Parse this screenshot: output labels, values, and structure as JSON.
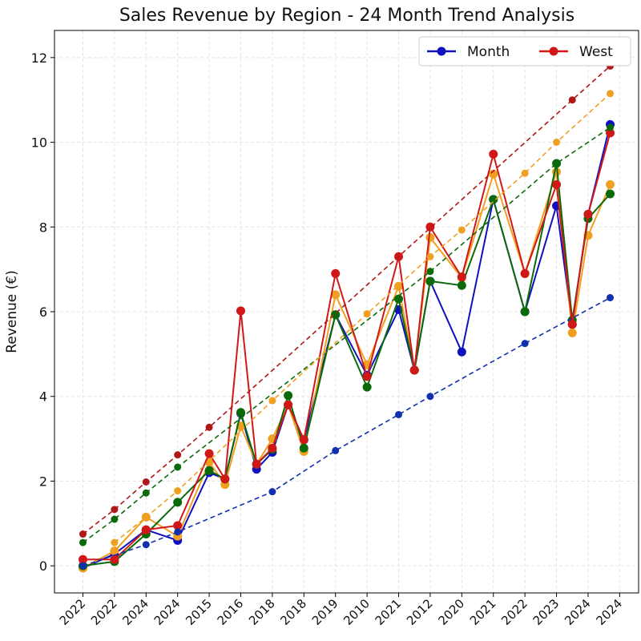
{
  "chart_data": {
    "type": "line",
    "title": "Sales Revenue by Region - 24 Month Trend Analysis",
    "y_label": "Revenue (€)",
    "xlim": [
      -0.9,
      17.6
    ],
    "xticks": [
      {
        "value": 0,
        "label": "2022"
      },
      {
        "value": 1,
        "label": "2022"
      },
      {
        "value": 2,
        "label": "2024"
      },
      {
        "value": 3,
        "label": "2024"
      },
      {
        "value": 4,
        "label": "2015"
      },
      {
        "value": 5,
        "label": "2016"
      },
      {
        "value": 6,
        "label": "2018"
      },
      {
        "value": 7,
        "label": "2018"
      },
      {
        "value": 8,
        "label": "2019"
      },
      {
        "value": 9,
        "label": "2010"
      },
      {
        "value": 10,
        "label": "2021"
      },
      {
        "value": 11,
        "label": "2012"
      },
      {
        "value": 12,
        "label": "2020"
      },
      {
        "value": 13,
        "label": "2021"
      },
      {
        "value": 14,
        "label": "2022"
      },
      {
        "value": 15,
        "label": "2023"
      },
      {
        "value": 16,
        "label": "2024"
      },
      {
        "value": 17,
        "label": "2024"
      }
    ],
    "ylim": [
      -0.64,
      12.64
    ],
    "yticks": [
      0,
      2,
      4,
      6,
      8,
      10,
      12
    ],
    "grid": true,
    "legend_position": "upper right",
    "series": [
      {
        "name": "Month",
        "color": "#1010c0",
        "style": "solid",
        "x": [
          0,
          1,
          2,
          3,
          4,
          4.5,
          5,
          5.5,
          6,
          6.5,
          7,
          8,
          9,
          10,
          10.5,
          11,
          12,
          13,
          14,
          15,
          15.5,
          16,
          16.7
        ],
        "values": [
          -0.05,
          0.28,
          0.85,
          0.6,
          2.2,
          2.05,
          3.6,
          2.28,
          2.68,
          3.8,
          2.97,
          5.93,
          4.5,
          6.05,
          4.62,
          6.72,
          5.05,
          8.65,
          6.0,
          8.5,
          5.7,
          8.3,
          10.42
        ]
      },
      {
        "color": "#f0a020",
        "style": "solid",
        "x": [
          0,
          1,
          2,
          3,
          4,
          4.5,
          5,
          5.5,
          6,
          6.5,
          7,
          8,
          9,
          10,
          10.5,
          11,
          12,
          13,
          14,
          15,
          15.5,
          16,
          16.7
        ],
        "values": [
          -0.05,
          0.35,
          1.15,
          0.7,
          2.45,
          1.92,
          3.3,
          2.4,
          3.0,
          3.8,
          2.7,
          6.4,
          4.75,
          6.6,
          4.62,
          7.75,
          6.8,
          9.25,
          6.9,
          9.3,
          5.5,
          7.8,
          9.0
        ]
      },
      {
        "color": "#0a6a0a",
        "style": "solid",
        "x": [
          0,
          1,
          2,
          3,
          4,
          4.5,
          5,
          5.5,
          6,
          6.5,
          7,
          8,
          9,
          10,
          10.5,
          11,
          12,
          13,
          14,
          15,
          15.5,
          16,
          16.7
        ],
        "values": [
          0.0,
          0.1,
          0.75,
          1.5,
          2.25,
          2.05,
          3.62,
          2.4,
          2.75,
          4.02,
          2.78,
          5.93,
          4.22,
          6.3,
          4.62,
          6.72,
          6.62,
          8.65,
          6.0,
          9.5,
          5.8,
          8.2,
          8.78
        ]
      },
      {
        "name": "West",
        "color": "#d01818",
        "style": "solid",
        "x": [
          0,
          1,
          2,
          3,
          4,
          4.5,
          5,
          5.5,
          6,
          6.5,
          7,
          8,
          9,
          10,
          10.5,
          11,
          12,
          13,
          14,
          15,
          15.5,
          16,
          16.7
        ],
        "values": [
          0.15,
          0.15,
          0.85,
          0.95,
          2.65,
          2.05,
          6.02,
          2.4,
          2.78,
          3.8,
          2.98,
          6.9,
          4.47,
          7.3,
          4.62,
          8.0,
          6.82,
          9.72,
          6.9,
          9.0,
          5.7,
          8.3,
          10.22
        ]
      },
      {
        "color": "#1030b0",
        "style": "dashed",
        "x": [
          0,
          2,
          3,
          6,
          8,
          10,
          11,
          14,
          16.7
        ],
        "values": [
          0,
          0.5,
          0.8,
          1.75,
          2.72,
          3.57,
          4.0,
          5.25,
          6.33
        ]
      },
      {
        "color": "#0a6a0a",
        "style": "dashed",
        "x": [
          0,
          1,
          2,
          3,
          11,
          15,
          16.7
        ],
        "values": [
          0.55,
          1.1,
          1.72,
          2.33,
          6.95,
          9.5,
          10.35
        ]
      },
      {
        "color": "#f0a020",
        "style": "dashed",
        "x": [
          1,
          2,
          3,
          6,
          9,
          11,
          12,
          14,
          15,
          16.7
        ],
        "values": [
          0.55,
          1.15,
          1.77,
          3.9,
          5.95,
          7.3,
          7.93,
          9.27,
          10.0,
          11.15
        ]
      },
      {
        "color": "#b01818",
        "style": "dashed",
        "x": [
          0,
          1,
          2,
          3,
          4,
          15.5,
          16.7
        ],
        "values": [
          0.75,
          1.33,
          1.98,
          2.62,
          3.27,
          11.0,
          11.8
        ]
      }
    ]
  }
}
